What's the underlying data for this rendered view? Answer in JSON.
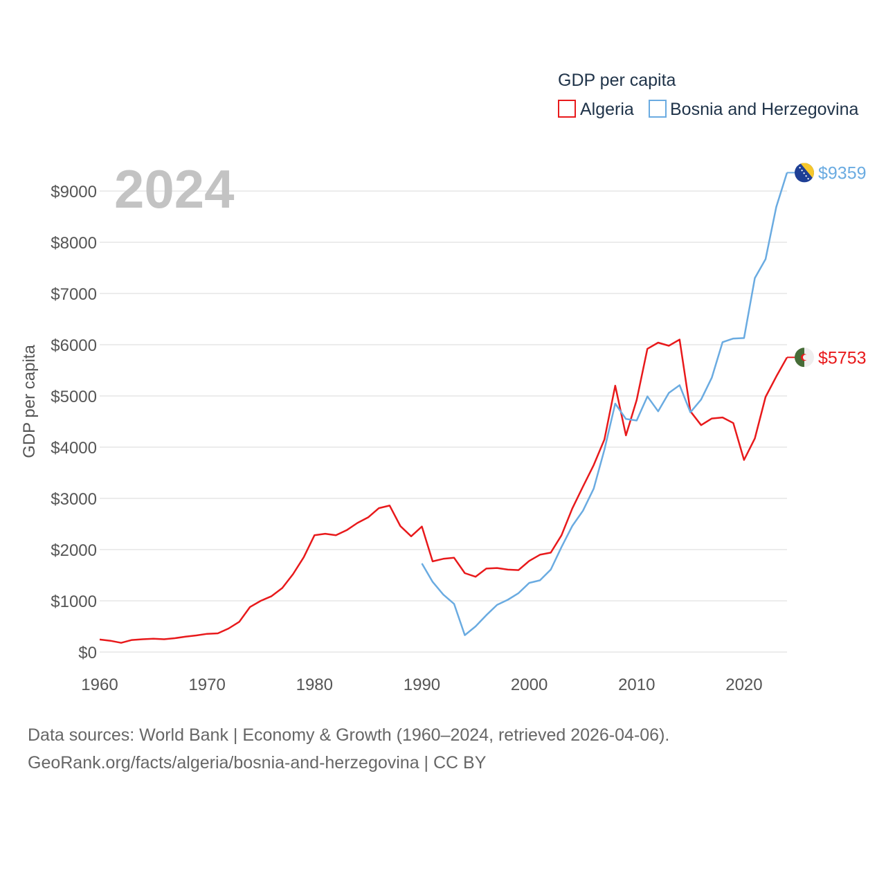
{
  "chart_data": {
    "type": "line",
    "title": "GDP per capita",
    "year_label": "2024",
    "xlabel": "",
    "ylabel": "GDP per capita",
    "xlim": [
      1960,
      2024
    ],
    "ylim": [
      0,
      9000
    ],
    "xticks": [
      1960,
      1970,
      1980,
      1990,
      2000,
      2010,
      2020
    ],
    "yticks": [
      0,
      1000,
      2000,
      3000,
      4000,
      5000,
      6000,
      7000,
      8000,
      9000
    ],
    "ytick_labels": [
      "$0",
      "$1000",
      "$2000",
      "$3000",
      "$4000",
      "$5000",
      "$6000",
      "$7000",
      "$8000",
      "$9000"
    ],
    "legend": "top-right",
    "series": [
      {
        "name": "Algeria",
        "color": "#e8191b",
        "end_label": "$5753",
        "flag": "algeria-flag",
        "x": [
          1960,
          1961,
          1962,
          1963,
          1964,
          1965,
          1966,
          1967,
          1968,
          1969,
          1970,
          1971,
          1972,
          1973,
          1974,
          1975,
          1976,
          1977,
          1978,
          1979,
          1980,
          1981,
          1982,
          1983,
          1984,
          1985,
          1986,
          1987,
          1988,
          1989,
          1990,
          1991,
          1992,
          1993,
          1994,
          1995,
          1996,
          1997,
          1998,
          1999,
          2000,
          2001,
          2002,
          2003,
          2004,
          2005,
          2006,
          2007,
          2008,
          2009,
          2010,
          2011,
          2012,
          2013,
          2014,
          2015,
          2016,
          2017,
          2018,
          2019,
          2020,
          2021,
          2022,
          2023,
          2024
        ],
        "values": [
          245,
          220,
          180,
          235,
          250,
          260,
          250,
          270,
          300,
          325,
          355,
          365,
          460,
          590,
          880,
          1000,
          1090,
          1250,
          1520,
          1850,
          2280,
          2310,
          2280,
          2380,
          2520,
          2630,
          2810,
          2860,
          2460,
          2260,
          2450,
          1770,
          1820,
          1840,
          1540,
          1470,
          1630,
          1640,
          1610,
          1600,
          1780,
          1900,
          1940,
          2280,
          2800,
          3230,
          3650,
          4150,
          5200,
          4230,
          4920,
          5920,
          6040,
          5980,
          6100,
          4700,
          4430,
          4560,
          4580,
          4470,
          3750,
          4170,
          4980,
          5380,
          5753
        ]
      },
      {
        "name": "Bosnia and Herzegovina",
        "color": "#6aabe1",
        "end_label": "$9359",
        "flag": "bosnia-flag",
        "x": [
          1990,
          1991,
          1992,
          1993,
          1994,
          1995,
          1996,
          1997,
          1998,
          1999,
          2000,
          2001,
          2002,
          2003,
          2004,
          2005,
          2006,
          2007,
          2008,
          2009,
          2010,
          2011,
          2012,
          2013,
          2014,
          2015,
          2016,
          2017,
          2018,
          2019,
          2020,
          2021,
          2022,
          2023,
          2024
        ],
        "values": [
          1730,
          1370,
          1120,
          940,
          330,
          500,
          720,
          920,
          1020,
          1150,
          1350,
          1400,
          1610,
          2050,
          2460,
          2760,
          3190,
          3950,
          4850,
          4550,
          4520,
          4990,
          4700,
          5060,
          5210,
          4680,
          4930,
          5360,
          6050,
          6120,
          6130,
          7300,
          7670,
          8690,
          9359
        ]
      }
    ]
  },
  "source": {
    "line1": "Data sources: World Bank | Economy & Growth (1960–2024, retrieved 2026-04-06).",
    "line2": "GeoRank.org/facts/algeria/bosnia-and-herzegovina | CC BY"
  }
}
